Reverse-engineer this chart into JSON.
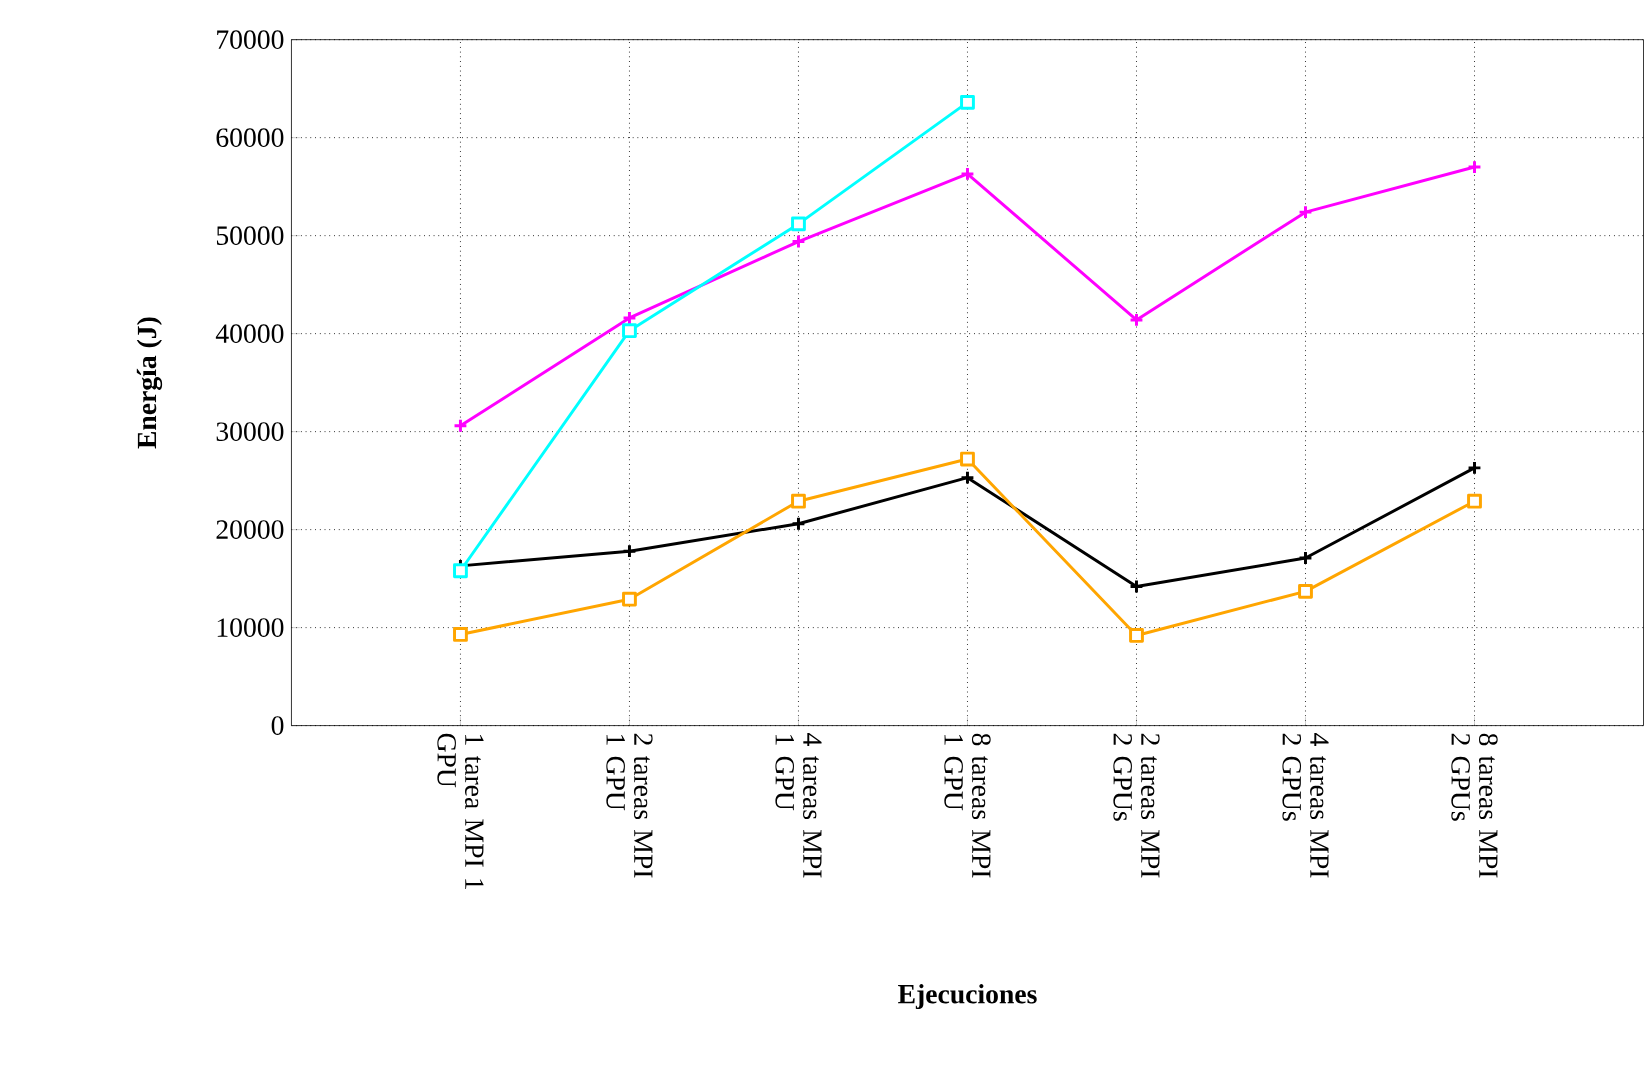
{
  "chart_data": {
    "type": "line",
    "xlabel": "Ejecuciones",
    "ylabel": "Energía (J)",
    "categories": [
      "1 tarea MPI 1 GPU",
      "2 tareas MPI 1 GPU",
      "4 tareas MPI 1 GPU",
      "8 tareas MPI 1 GPU",
      "2 tareas MPI 2 GPUs",
      "4 tareas MPI 2 GPUs",
      "8 tareas MPI 2 GPUs"
    ],
    "series": [
      {
        "color": "#000000",
        "marker": "cross",
        "values": [
          16300,
          17800,
          20600,
          25300,
          14200,
          17100,
          26300
        ]
      },
      {
        "color": "#ff00ff",
        "marker": "cross",
        "values": [
          30600,
          41600,
          49400,
          56300,
          41400,
          52400,
          57000
        ]
      },
      {
        "color": "#00ffff",
        "marker": "square",
        "values": [
          15800,
          40300,
          51200,
          63600,
          null,
          null,
          null
        ]
      },
      {
        "color": "#ffa500",
        "marker": "square",
        "values": [
          9300,
          12900,
          22900,
          27200,
          9200,
          13700,
          22900
        ]
      }
    ],
    "ylim": [
      0,
      70000
    ],
    "yticks": [
      0,
      10000,
      20000,
      30000,
      40000,
      50000,
      60000,
      70000
    ],
    "grid": true,
    "line_style": "solid"
  }
}
